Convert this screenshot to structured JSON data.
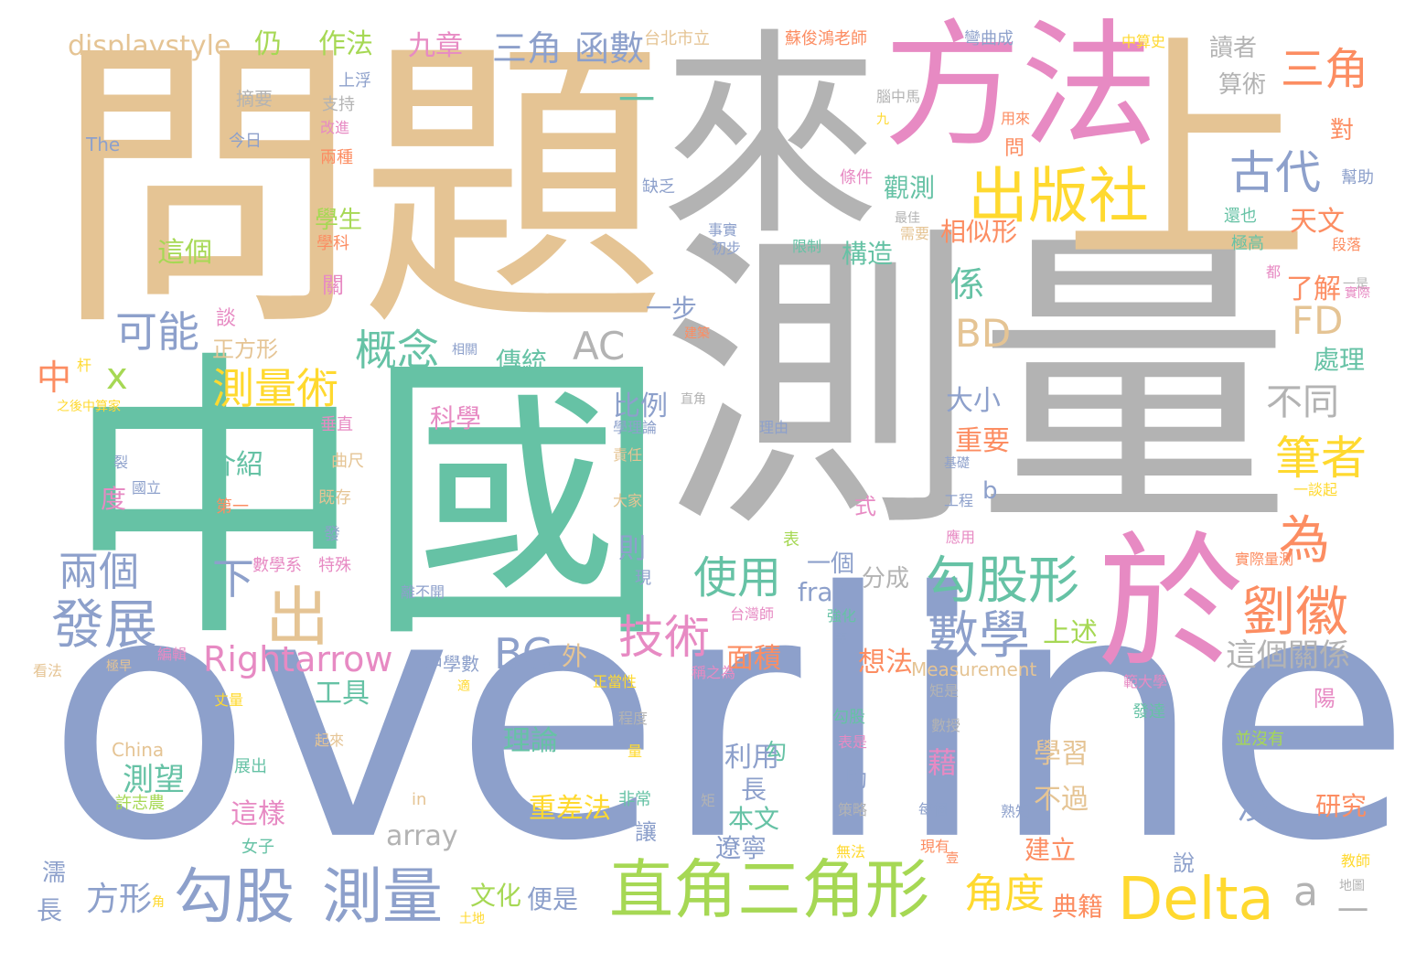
{
  "palette": {
    "green": "#66c2a5",
    "orange": "#fc8d62",
    "blue": "#8da0cb",
    "pink": "#e78ac3",
    "lime": "#a6d854",
    "yellow": "#ffd92f",
    "tan": "#e5c494",
    "gray": "#b3b3b3"
  },
  "words": [
    {
      "text": "overline",
      "color": "#8da0cb"
    },
    {
      "text": "測量",
      "color": "#b3b3b3"
    },
    {
      "text": "問題",
      "color": "#e5c494"
    },
    {
      "text": "中國",
      "color": "#66c2a5"
    },
    {
      "text": "來",
      "color": "#b3b3b3"
    },
    {
      "text": "上",
      "color": "#e5c494"
    },
    {
      "text": "方法",
      "color": "#e78ac3"
    },
    {
      "text": "於",
      "color": "#e78ac3"
    },
    {
      "text": "直角三角形",
      "color": "#a6d854"
    },
    {
      "text": "出版社",
      "color": "#ffd92f"
    },
    {
      "text": "Delta",
      "color": "#ffd92f"
    },
    {
      "text": "勾股",
      "color": "#8da0cb"
    },
    {
      "text": "測量",
      "color": "#8da0cb"
    },
    {
      "text": "勾股形",
      "color": "#66c2a5"
    },
    {
      "text": "數學",
      "color": "#8da0cb"
    },
    {
      "text": "劉徽",
      "color": "#fc8d62"
    },
    {
      "text": "發展",
      "color": "#8da0cb"
    },
    {
      "text": "三角",
      "color": "#fc8d62"
    },
    {
      "text": "古代",
      "color": "#8da0cb"
    },
    {
      "text": "技術",
      "color": "#e78ac3"
    },
    {
      "text": "使用",
      "color": "#66c2a5"
    },
    {
      "text": "測量術",
      "color": "#ffd92f"
    },
    {
      "text": "筆者",
      "color": "#ffd92f"
    },
    {
      "text": "為",
      "color": "#fc8d62"
    },
    {
      "text": "Rightarrow",
      "color": "#e78ac3"
    },
    {
      "text": "出",
      "color": "#e5c494"
    },
    {
      "text": "可能",
      "color": "#8da0cb"
    },
    {
      "text": "概念",
      "color": "#66c2a5"
    },
    {
      "text": "BD",
      "color": "#e5c494"
    },
    {
      "text": "FD",
      "color": "#e5c494"
    },
    {
      "text": "AC",
      "color": "#b3b3b3"
    },
    {
      "text": "BC",
      "color": "#8da0cb"
    },
    {
      "text": "兩個",
      "color": "#8da0cb"
    },
    {
      "text": "角度",
      "color": "#ffd92f"
    },
    {
      "text": "三角",
      "color": "#8da0cb"
    },
    {
      "text": "函數",
      "color": "#8da0cb"
    },
    {
      "text": "不同",
      "color": "#b3b3b3"
    },
    {
      "text": "下",
      "color": "#8da0cb"
    },
    {
      "text": "displaystyle",
      "color": "#e5c494"
    },
    {
      "text": "這個關係",
      "color": "#b3b3b3"
    },
    {
      "text": "九章",
      "color": "#e78ac3"
    },
    {
      "text": "作法",
      "color": "#a6d854"
    },
    {
      "text": "仍",
      "color": "#a6d854"
    },
    {
      "text": "一",
      "color": "#66c2a5"
    },
    {
      "text": "一",
      "color": "#b3b3b3"
    },
    {
      "text": "天文",
      "color": "#fc8d62"
    },
    {
      "text": "觀測",
      "color": "#66c2a5"
    },
    {
      "text": "相似形",
      "color": "#fc8d62"
    },
    {
      "text": "構造",
      "color": "#66c2a5"
    },
    {
      "text": "學生",
      "color": "#a6d854"
    },
    {
      "text": "這個",
      "color": "#a6d854"
    },
    {
      "text": "係",
      "color": "#66c2a5"
    },
    {
      "text": "中",
      "color": "#fc8d62"
    },
    {
      "text": "x",
      "color": "#a6d854"
    },
    {
      "text": "正方形",
      "color": "#e5c494"
    },
    {
      "text": "傳統",
      "color": "#66c2a5"
    },
    {
      "text": "大小",
      "color": "#8da0cb"
    },
    {
      "text": "重要",
      "color": "#fc8d62"
    },
    {
      "text": "了解",
      "color": "#fc8d62"
    },
    {
      "text": "處理",
      "color": "#66c2a5"
    },
    {
      "text": "比例",
      "color": "#8da0cb"
    },
    {
      "text": "科學",
      "color": "#e78ac3"
    },
    {
      "text": "介紹",
      "color": "#66c2a5"
    },
    {
      "text": "一步",
      "color": "#8da0cb"
    },
    {
      "text": "上述",
      "color": "#a6d854"
    },
    {
      "text": "面積",
      "color": "#fc8d62"
    },
    {
      "text": "想法",
      "color": "#fc8d62"
    },
    {
      "text": "一個",
      "color": "#8da0cb"
    },
    {
      "text": "分成",
      "color": "#b3b3b3"
    },
    {
      "text": "frac",
      "color": "#8da0cb"
    },
    {
      "text": "則",
      "color": "#8da0cb"
    },
    {
      "text": "b",
      "color": "#8da0cb"
    },
    {
      "text": "工具",
      "color": "#66c2a5"
    },
    {
      "text": "外",
      "color": "#e5c494"
    },
    {
      "text": "a",
      "color": "#b3b3b3"
    },
    {
      "text": "理論",
      "color": "#66c2a5"
    },
    {
      "text": "測望",
      "color": "#66c2a5"
    },
    {
      "text": "利用",
      "color": "#8da0cb"
    },
    {
      "text": "學習",
      "color": "#e5c494"
    },
    {
      "text": "藉",
      "color": "#e78ac3"
    },
    {
      "text": "不過",
      "color": "#e5c494"
    },
    {
      "text": "研究",
      "color": "#fc8d62"
    },
    {
      "text": "這樣",
      "color": "#e78ac3"
    },
    {
      "text": "重差法",
      "color": "#ffd92f"
    },
    {
      "text": "本文",
      "color": "#66c2a5"
    },
    {
      "text": "遼寧",
      "color": "#8da0cb"
    },
    {
      "text": "沒",
      "color": "#8da0cb"
    },
    {
      "text": "長",
      "color": "#8da0cb"
    },
    {
      "text": "方形",
      "color": "#8da0cb"
    },
    {
      "text": "文化",
      "color": "#a6d854"
    },
    {
      "text": "便是",
      "color": "#8da0cb"
    },
    {
      "text": "典籍",
      "color": "#fc8d62"
    },
    {
      "text": "建立",
      "color": "#fc8d62"
    },
    {
      "text": "array",
      "color": "#b3b3b3"
    },
    {
      "text": "讀者",
      "color": "#b3b3b3"
    },
    {
      "text": "算術",
      "color": "#b3b3b3"
    },
    {
      "text": "對",
      "color": "#fc8d62"
    },
    {
      "text": "台北市立",
      "color": "#e5c494"
    },
    {
      "text": "蘇俊鴻老師",
      "color": "#fc8d62"
    },
    {
      "text": "彎曲成",
      "color": "#8da0cb"
    },
    {
      "text": "中算史",
      "color": "#ffd92f"
    },
    {
      "text": "上浮",
      "color": "#8da0cb"
    },
    {
      "text": "摘要",
      "color": "#b3b3b3"
    },
    {
      "text": "支持",
      "color": "#b3b3b3"
    },
    {
      "text": "The",
      "color": "#8da0cb"
    },
    {
      "text": "今日",
      "color": "#8da0cb"
    },
    {
      "text": "改進",
      "color": "#e78ac3"
    },
    {
      "text": "兩種",
      "color": "#fc8d62"
    },
    {
      "text": "腦中馬",
      "color": "#b3b3b3"
    },
    {
      "text": "九",
      "color": "#ffd92f"
    },
    {
      "text": "用來",
      "color": "#fc8d62"
    },
    {
      "text": "問",
      "color": "#fc8d62"
    },
    {
      "text": "條件",
      "color": "#e78ac3"
    },
    {
      "text": "缺乏",
      "color": "#8da0cb"
    },
    {
      "text": "最佳",
      "color": "#b3b3b3"
    },
    {
      "text": "幫助",
      "color": "#8da0cb"
    },
    {
      "text": "還也",
      "color": "#66c2a5"
    },
    {
      "text": "學科",
      "color": "#fc8d62"
    },
    {
      "text": "事實",
      "color": "#8da0cb"
    },
    {
      "text": "初步",
      "color": "#8da0cb"
    },
    {
      "text": "限制",
      "color": "#66c2a5"
    },
    {
      "text": "需要",
      "color": "#e5c494"
    },
    {
      "text": "極高",
      "color": "#66c2a5"
    },
    {
      "text": "段落",
      "color": "#fc8d62"
    },
    {
      "text": "一是",
      "color": "#b3b3b3"
    },
    {
      "text": "都",
      "color": "#e78ac3"
    },
    {
      "text": "實際",
      "color": "#e78ac3"
    },
    {
      "text": "關",
      "color": "#e78ac3"
    },
    {
      "text": "談",
      "color": "#e78ac3"
    },
    {
      "text": "杆",
      "color": "#ffd92f"
    },
    {
      "text": "相關",
      "color": "#8da0cb"
    },
    {
      "text": "建築",
      "color": "#fc8d62"
    },
    {
      "text": "之後中算家",
      "color": "#ffd92f"
    },
    {
      "text": "垂直",
      "color": "#e78ac3"
    },
    {
      "text": "曲尺",
      "color": "#e5c494"
    },
    {
      "text": "裂",
      "color": "#8da0cb"
    },
    {
      "text": "國立",
      "color": "#8da0cb"
    },
    {
      "text": "度",
      "color": "#e78ac3"
    },
    {
      "text": "第一",
      "color": "#fc8d62"
    },
    {
      "text": "既存",
      "color": "#e5c494"
    },
    {
      "text": "學理論",
      "color": "#8da0cb"
    },
    {
      "text": "責任",
      "color": "#e5c494"
    },
    {
      "text": "大家",
      "color": "#e5c494"
    },
    {
      "text": "直角",
      "color": "#b3b3b3"
    },
    {
      "text": "理由",
      "color": "#8da0cb"
    },
    {
      "text": "基礎",
      "color": "#8da0cb"
    },
    {
      "text": "工程",
      "color": "#8da0cb"
    },
    {
      "text": "一談起",
      "color": "#ffd92f"
    },
    {
      "text": "式",
      "color": "#e78ac3"
    },
    {
      "text": "發",
      "color": "#8da0cb"
    },
    {
      "text": "表",
      "color": "#a6d854"
    },
    {
      "text": "應用",
      "color": "#e78ac3"
    },
    {
      "text": "數學系",
      "color": "#e78ac3"
    },
    {
      "text": "特殊",
      "color": "#e78ac3"
    },
    {
      "text": "現",
      "color": "#8da0cb"
    },
    {
      "text": "實際量測",
      "color": "#fc8d62"
    },
    {
      "text": "離不開",
      "color": "#8da0cb"
    },
    {
      "text": "台灣師",
      "color": "#e78ac3"
    },
    {
      "text": "強化",
      "color": "#66c2a5"
    },
    {
      "text": "等",
      "color": "#8da0cb"
    },
    {
      "text": "中學數",
      "color": "#8da0cb"
    },
    {
      "text": "Measurement",
      "color": "#e5c494"
    },
    {
      "text": "編輯",
      "color": "#e78ac3"
    },
    {
      "text": "極早",
      "color": "#e5c494"
    },
    {
      "text": "看法",
      "color": "#e5c494"
    },
    {
      "text": "適",
      "color": "#ffd92f"
    },
    {
      "text": "正當性",
      "color": "#ffd92f"
    },
    {
      "text": "稱之為",
      "color": "#e78ac3"
    },
    {
      "text": "矩是",
      "color": "#b3b3b3"
    },
    {
      "text": "範大學",
      "color": "#e78ac3"
    },
    {
      "text": "發達",
      "color": "#66c2a5"
    },
    {
      "text": "陽",
      "color": "#e78ac3"
    },
    {
      "text": "丈量",
      "color": "#ffd92f"
    },
    {
      "text": "程度",
      "color": "#b3b3b3"
    },
    {
      "text": "勾股",
      "color": "#66c2a5"
    },
    {
      "text": "表是",
      "color": "#e78ac3"
    },
    {
      "text": "數授",
      "color": "#b3b3b3"
    },
    {
      "text": "China",
      "color": "#e5c494"
    },
    {
      "text": "起來",
      "color": "#e5c494"
    },
    {
      "text": "展出",
      "color": "#66c2a5"
    },
    {
      "text": "勾",
      "color": "#66c2a5"
    },
    {
      "text": "量",
      "color": "#ffd92f"
    },
    {
      "text": "助",
      "color": "#8da0cb"
    },
    {
      "text": "並沒有",
      "color": "#a6d854"
    },
    {
      "text": "許志農",
      "color": "#a6d854"
    },
    {
      "text": "in",
      "color": "#e5c494"
    },
    {
      "text": "非常",
      "color": "#66c2a5"
    },
    {
      "text": "矩",
      "color": "#b3b3b3"
    },
    {
      "text": "策略",
      "color": "#b3b3b3"
    },
    {
      "text": "每個",
      "color": "#8da0cb"
    },
    {
      "text": "熟知",
      "color": "#8da0cb"
    },
    {
      "text": "女子",
      "color": "#66c2a5"
    },
    {
      "text": "讓",
      "color": "#8da0cb"
    },
    {
      "text": "無法",
      "color": "#ffd92f"
    },
    {
      "text": "現有",
      "color": "#fc8d62"
    },
    {
      "text": "說",
      "color": "#8da0cb"
    },
    {
      "text": "教師",
      "color": "#ffd92f"
    },
    {
      "text": "濡",
      "color": "#8da0cb"
    },
    {
      "text": "角",
      "color": "#ffd92f"
    },
    {
      "text": "土地",
      "color": "#ffd92f"
    },
    {
      "text": "長",
      "color": "#8da0cb"
    },
    {
      "text": "地圖",
      "color": "#b3b3b3"
    },
    {
      "text": "壹",
      "color": "#fc8d62"
    }
  ]
}
